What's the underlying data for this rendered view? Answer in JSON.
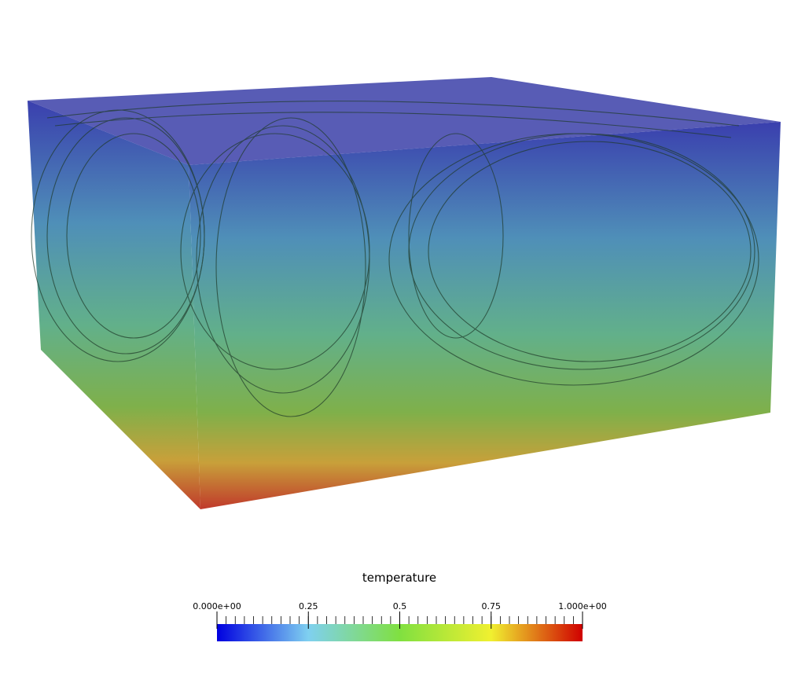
{
  "colorbar": {
    "title": "temperature",
    "range": [
      0,
      1
    ],
    "ticks": [
      {
        "value": 0,
        "label": "0.000e+00"
      },
      0.25,
      0.5,
      0.75,
      {
        "value": 1,
        "label": "1.000e+00"
      }
    ]
  }
}
